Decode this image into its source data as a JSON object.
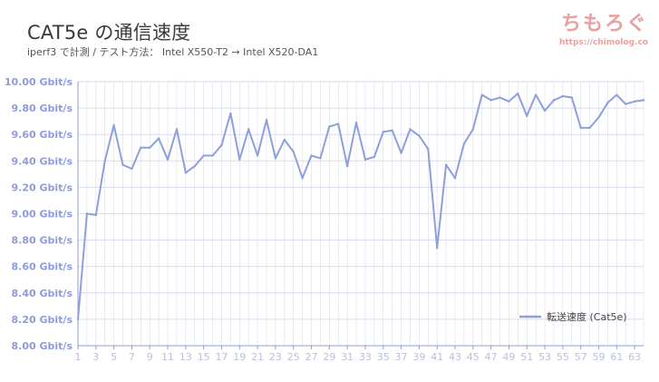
{
  "title": "CAT5e の通信速度",
  "subtitle": "iperf3 で計測 / テスト方法： Intel X550-T2 → Intel X520-DA1",
  "brand": {
    "logo": "ちもろぐ",
    "url": "https://chimolog.co"
  },
  "colors": {
    "line": "#8da0db",
    "axis_text": "#8e9bdc",
    "grid": "#d9dcef",
    "axis_line": "#8e9bdc",
    "tick_x": "#b9bfe0"
  },
  "chart_data": {
    "type": "line",
    "y_tick_labels": [
      "10.00 Gbit/s",
      "9.80 Gbit/s",
      "9.60 Gbit/s",
      "9.40 Gbit/s",
      "9.20 Gbit/s",
      "9.00 Gbit/s",
      "8.80 Gbit/s",
      "8.60 Gbit/s",
      "8.40 Gbit/s",
      "8.20 Gbit/s",
      "8.00 Gbit/s"
    ],
    "x_tick_labels": [
      "1",
      "3",
      "5",
      "7",
      "9",
      "11",
      "13",
      "15",
      "17",
      "19",
      "21",
      "23",
      "25",
      "27",
      "29",
      "31",
      "33",
      "35",
      "37",
      "39",
      "41",
      "43",
      "45",
      "47",
      "49",
      "51",
      "53",
      "55",
      "57",
      "59",
      "61",
      "63"
    ],
    "ylim": [
      8.0,
      10.0
    ],
    "xlim": [
      1,
      64
    ],
    "grid": true,
    "legend_position": "bottom-right",
    "series": [
      {
        "name": "転送速度 (Cat5e)",
        "x": [
          1,
          2,
          3,
          4,
          5,
          6,
          7,
          8,
          9,
          10,
          11,
          12,
          13,
          14,
          15,
          16,
          17,
          18,
          19,
          20,
          21,
          22,
          23,
          24,
          25,
          26,
          27,
          28,
          29,
          30,
          31,
          32,
          33,
          34,
          35,
          36,
          37,
          38,
          39,
          40,
          41,
          42,
          43,
          44,
          45,
          46,
          47,
          48,
          49,
          50,
          51,
          52,
          53,
          54,
          55,
          56,
          57,
          58,
          59,
          60,
          61,
          62,
          63,
          64
        ],
        "values": [
          8.2,
          9.0,
          8.99,
          9.4,
          9.67,
          9.37,
          9.34,
          9.5,
          9.5,
          9.57,
          9.41,
          9.64,
          9.31,
          9.36,
          9.44,
          9.44,
          9.52,
          9.76,
          9.41,
          9.64,
          9.44,
          9.71,
          9.42,
          9.56,
          9.47,
          9.27,
          9.44,
          9.42,
          9.66,
          9.68,
          9.36,
          9.69,
          9.41,
          9.43,
          9.62,
          9.63,
          9.46,
          9.64,
          9.59,
          9.49,
          8.74,
          9.37,
          9.27,
          9.53,
          9.64,
          9.9,
          9.86,
          9.88,
          9.85,
          9.91,
          9.74,
          9.9,
          9.78,
          9.86,
          9.89,
          9.88,
          9.65,
          9.65,
          9.73,
          9.84,
          9.9,
          9.83,
          9.85,
          9.86
        ]
      }
    ]
  }
}
